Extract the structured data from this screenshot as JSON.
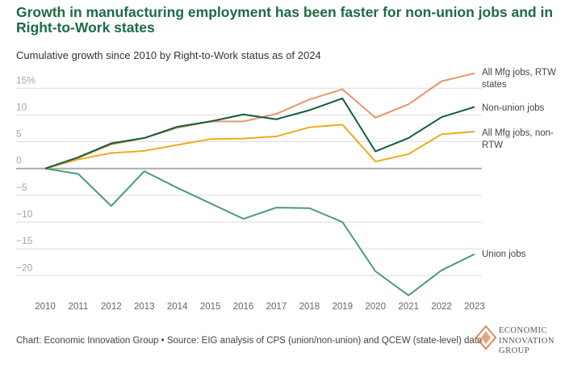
{
  "title": "Growth in manufacturing employment has been faster for non-union jobs and in Right-to-Work states",
  "subtitle": "Cumulative growth since 2010 by Right-to-Work status as of 2024",
  "footer": "Chart: Economic Innovation Group • Source: EIG analysis of CPS (union/non-union) and QCEW (state-level) data",
  "logo": {
    "line1": "ECONOMIC",
    "line2": "INNOVATION",
    "line3": "GROUP"
  },
  "chart_data": {
    "type": "line",
    "title": "Growth in manufacturing employment has been faster for non-union jobs and in Right-to-Work states",
    "subtitle": "Cumulative growth since 2010 by Right-to-Work status as of 2024",
    "x": [
      2010,
      2011,
      2012,
      2013,
      2014,
      2015,
      2016,
      2017,
      2018,
      2019,
      2020,
      2021,
      2022,
      2023
    ],
    "ylim": [
      -25,
      17.5
    ],
    "yticks": [
      15,
      10,
      5,
      0,
      -5,
      -10,
      -15,
      -20
    ],
    "ytick_labels": [
      "15%",
      "10",
      "5",
      "0",
      "−5",
      "−10",
      "−15",
      "−20"
    ],
    "grid": true,
    "legend": "direct labels at right",
    "series": [
      {
        "name": "All Mfg jobs, RTW states",
        "color": "#e8956a",
        "values": [
          0,
          2.0,
          4.5,
          5.7,
          7.6,
          8.8,
          8.8,
          10.2,
          12.9,
          14.8,
          9.5,
          12.0,
          16.3,
          17.8
        ]
      },
      {
        "name": "Non-union jobs",
        "color": "#125c3a",
        "values": [
          0,
          2.1,
          4.7,
          5.7,
          7.8,
          8.8,
          10.1,
          9.2,
          10.9,
          13.1,
          3.2,
          5.7,
          9.6,
          11.5
        ]
      },
      {
        "name": "All Mfg jobs, non-RTW",
        "color": "#efab1c",
        "values": [
          0,
          1.7,
          2.9,
          3.3,
          4.4,
          5.5,
          5.6,
          6.0,
          7.7,
          8.2,
          1.3,
          2.7,
          6.4,
          6.9
        ]
      },
      {
        "name": "Union jobs",
        "color": "#4b9a78",
        "values": [
          0,
          -1.0,
          -7.0,
          -0.5,
          -3.6,
          -6.5,
          -9.4,
          -7.3,
          -7.4,
          -10.0,
          -19.2,
          -23.7,
          -19.0,
          -16.0
        ]
      }
    ]
  }
}
